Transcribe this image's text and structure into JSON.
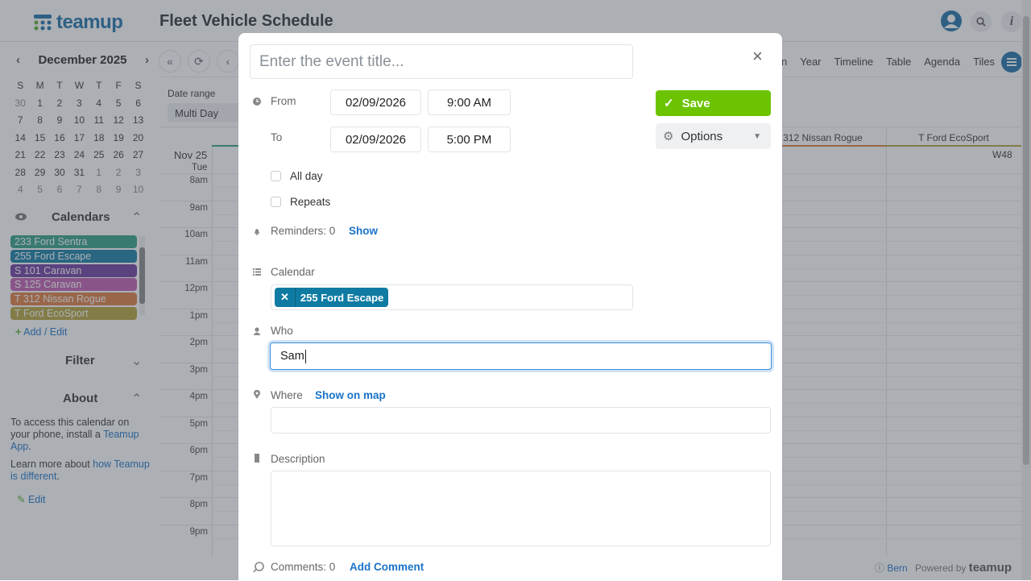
{
  "header": {
    "logo": "teamup",
    "title": "Fleet Vehicle Schedule"
  },
  "sidebar": {
    "month": "December 2025",
    "weekdays": [
      "S",
      "M",
      "T",
      "W",
      "T",
      "F",
      "S"
    ],
    "days": [
      [
        "30",
        "m"
      ],
      [
        "1",
        ""
      ],
      [
        "2",
        ""
      ],
      [
        "3",
        ""
      ],
      [
        "4",
        ""
      ],
      [
        "5",
        ""
      ],
      [
        "6",
        ""
      ],
      [
        "7",
        ""
      ],
      [
        "8",
        ""
      ],
      [
        "9",
        ""
      ],
      [
        "10",
        ""
      ],
      [
        "11",
        ""
      ],
      [
        "12",
        ""
      ],
      [
        "13",
        ""
      ],
      [
        "14",
        ""
      ],
      [
        "15",
        ""
      ],
      [
        "16",
        ""
      ],
      [
        "17",
        ""
      ],
      [
        "18",
        ""
      ],
      [
        "19",
        ""
      ],
      [
        "20",
        ""
      ],
      [
        "21",
        ""
      ],
      [
        "22",
        ""
      ],
      [
        "23",
        ""
      ],
      [
        "24",
        ""
      ],
      [
        "25",
        ""
      ],
      [
        "26",
        ""
      ],
      [
        "27",
        ""
      ],
      [
        "28",
        ""
      ],
      [
        "29",
        ""
      ],
      [
        "30",
        ""
      ],
      [
        "31",
        ""
      ],
      [
        "1",
        "m"
      ],
      [
        "2",
        "m"
      ],
      [
        "3",
        "m"
      ],
      [
        "4",
        "m"
      ],
      [
        "5",
        "m"
      ],
      [
        "6",
        "m"
      ],
      [
        "7",
        "m"
      ],
      [
        "8",
        "m"
      ],
      [
        "9",
        "m"
      ],
      [
        "10",
        "m"
      ]
    ],
    "calendars_title": "Calendars",
    "calendars": [
      {
        "name": "233 Ford Sentra",
        "color": "#2e9e83"
      },
      {
        "name": "255 Ford Escape",
        "color": "#0f7ba3"
      },
      {
        "name": "S 101 Caravan",
        "color": "#6b3a9e"
      },
      {
        "name": "S 125 Caravan",
        "color": "#c05bb0"
      },
      {
        "name": "T 312 Nissan Rogue",
        "color": "#dd7a3c"
      },
      {
        "name": "T Ford EcoSport",
        "color": "#b5a33a"
      }
    ],
    "add_edit": "Add / Edit",
    "filter_title": "Filter",
    "about_title": "About",
    "about_text1": "To access this calendar on your phone, install a ",
    "about_link1": "Teamup App",
    "about_text2": "Learn more about ",
    "about_link2": "how Teamup is different",
    "edit": "Edit"
  },
  "toolbar": {
    "views": [
      "n",
      "Year",
      "Timeline",
      "Table",
      "Agenda",
      "Tiles"
    ],
    "date_range_label": "Date range",
    "date_range_value": "Multi Day"
  },
  "grid": {
    "date": "Nov 25",
    "weekday": "Tue",
    "week": "W48",
    "columns": [
      {
        "name": "312 Nissan Rogue",
        "color": "#dd7a3c"
      },
      {
        "name": "T Ford EcoSport",
        "color": "#b5a33a"
      }
    ],
    "hours": [
      "8am",
      "9am",
      "10am",
      "11am",
      "12pm",
      "1pm",
      "2pm",
      "3pm",
      "4pm",
      "5pm",
      "6pm",
      "7pm",
      "8pm",
      "9pm"
    ]
  },
  "footer": {
    "timezone": "Bern",
    "powered_by": "Powered by",
    "brand": "teamup"
  },
  "modal": {
    "title_placeholder": "Enter the event title...",
    "from_label": "From",
    "from_date": "02/09/2026",
    "from_time": "9:00 AM",
    "to_label": "To",
    "to_date": "02/09/2026",
    "to_time": "5:00 PM",
    "all_day": "All day",
    "repeats": "Repeats",
    "reminders": "Reminders: 0",
    "reminders_show": "Show",
    "save": "Save",
    "options": "Options",
    "calendar_label": "Calendar",
    "calendar_chip": "255 Ford Escape",
    "calendar_chip_color": "#0f7ba3",
    "who_label": "Who",
    "who_value": "Sam",
    "where_label": "Where",
    "show_on_map": "Show on map",
    "where_value": "",
    "description_label": "Description",
    "comments": "Comments: 0",
    "add_comment": "Add Comment"
  },
  "colors": {
    "accent": "#1b6fa8",
    "save": "#6cc400",
    "link": "#1a73c9"
  }
}
